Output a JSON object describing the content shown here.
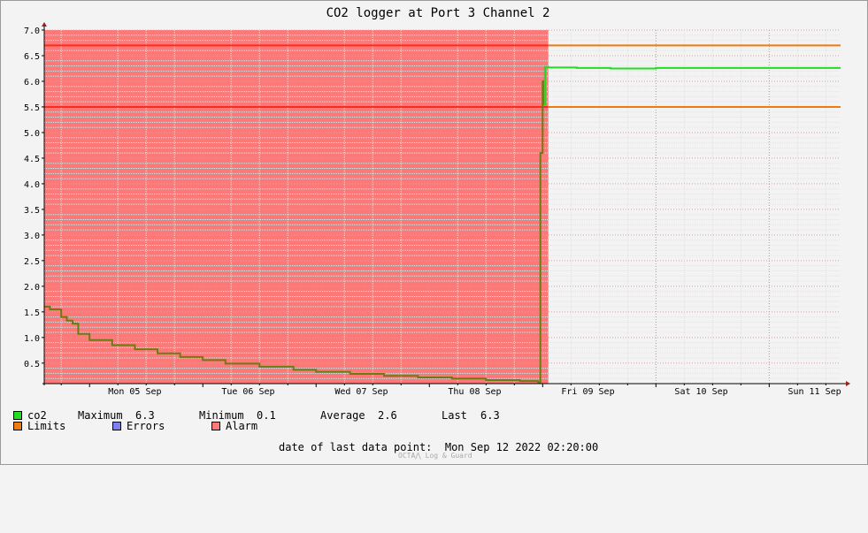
{
  "colors": {
    "co2": "#22dd22",
    "limits": "#ee7a10",
    "errors": "#7f7ff0",
    "alarm": "#ff7878",
    "alarm_line": "#ff2a1a",
    "line_in_alarm": "#6e7a12"
  },
  "chart_data": {
    "type": "line",
    "title": "CO2 logger at Port 3 Channel 2",
    "ylim": [
      0.1,
      7.0
    ],
    "y_ticks": [
      "7.0",
      "6.5",
      "6.0",
      "5.5",
      "5.0",
      "4.5",
      "4.0",
      "3.5",
      "3.0",
      "2.5",
      "2.0",
      "1.5",
      "1.0",
      "0.5"
    ],
    "y_tick_values": [
      7.0,
      6.5,
      6.0,
      5.5,
      5.0,
      4.5,
      4.0,
      3.5,
      3.0,
      2.5,
      2.0,
      1.5,
      1.0,
      0.5
    ],
    "x_range_days": [
      4.6,
      11.63
    ],
    "x_ticks": [
      {
        "day": 5,
        "label": "Mon 05 Sep"
      },
      {
        "day": 6,
        "label": "Tue 06 Sep"
      },
      {
        "day": 7,
        "label": "Wed 07 Sep"
      },
      {
        "day": 8,
        "label": "Thu 08 Sep"
      },
      {
        "day": 9,
        "label": "Fri 09 Sep"
      },
      {
        "day": 10,
        "label": "Sat 10 Sep"
      },
      {
        "day": 11,
        "label": "Sun 11 Sep"
      }
    ],
    "limits": [
      5.5,
      6.7
    ],
    "alarm_until_day": 9.05,
    "series": [
      {
        "name": "co2",
        "x_days": [
          4.6,
          4.65,
          4.75,
          4.8,
          4.85,
          4.9,
          5.0,
          5.2,
          5.4,
          5.6,
          5.8,
          6.0,
          6.2,
          6.5,
          6.8,
          7.0,
          7.3,
          7.6,
          7.9,
          8.2,
          8.5,
          8.8,
          8.96,
          8.97,
          8.98,
          9.0,
          9.01,
          9.02,
          9.05,
          9.3,
          9.6,
          10.0,
          10.4,
          10.8,
          11.2,
          11.63
        ],
        "values": [
          1.6,
          1.55,
          1.4,
          1.33,
          1.27,
          1.07,
          0.95,
          0.85,
          0.77,
          0.69,
          0.62,
          0.56,
          0.49,
          0.43,
          0.37,
          0.33,
          0.29,
          0.25,
          0.22,
          0.2,
          0.17,
          0.15,
          0.13,
          0.12,
          4.6,
          6.0,
          5.55,
          6.28,
          6.27,
          6.26,
          6.25,
          6.26,
          6.26,
          6.26,
          6.26,
          6.26
        ]
      }
    ]
  },
  "legend": {
    "co2_label": "co2",
    "max_label": "Maximum",
    "max_value": "6.3",
    "min_label": "Minimum",
    "min_value": "0.1",
    "avg_label": "Average",
    "avg_value": "2.6",
    "last_label": "Last",
    "last_value": "6.3",
    "limits_label": "Limits",
    "errors_label": "Errors",
    "alarm_label": "Alarm"
  },
  "footer": {
    "last_point_label": "date of last data point:",
    "last_point_value": "Mon Sep 12 2022 02:20:00",
    "brand": "OCTA⋀ Log & Guard"
  }
}
